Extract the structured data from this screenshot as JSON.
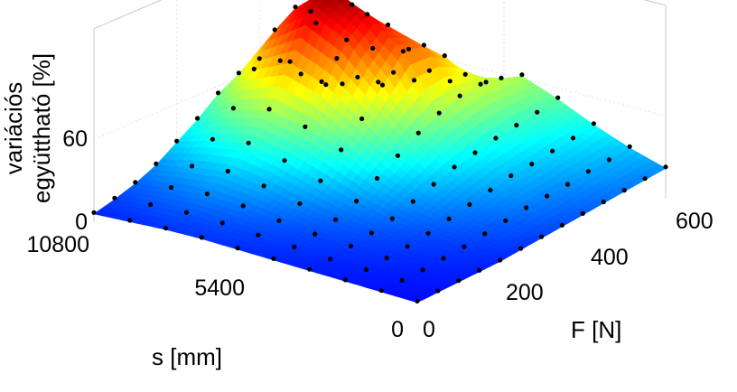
{
  "chart_data": {
    "type": "surface",
    "zlabel_line1": "variációs",
    "zlabel_line2": "együttható [%]",
    "xlabel": "F [N]",
    "ylabel": "s [mm]",
    "x_ticks": [
      "0",
      "200",
      "400",
      "600"
    ],
    "y_ticks": [
      "0",
      "5400",
      "10800"
    ],
    "z_ticks": [
      "0",
      "60"
    ],
    "xlim": [
      0,
      600
    ],
    "ylim": [
      0,
      10800
    ],
    "zlim": [
      0,
      140
    ],
    "colormap": "jet",
    "grid": true,
    "F": [
      0,
      50,
      100,
      150,
      200,
      250,
      300,
      350,
      400,
      450,
      500,
      550,
      600
    ],
    "s": [
      0,
      1200,
      2400,
      3600,
      4800,
      6000,
      7200,
      8400,
      9600,
      10800
    ],
    "z": [
      [
        2,
        3,
        4,
        5,
        6,
        8,
        10,
        12,
        14,
        16,
        18,
        20,
        22
      ],
      [
        3,
        4,
        5,
        7,
        9,
        12,
        15,
        18,
        20,
        22,
        25,
        27,
        30
      ],
      [
        4,
        5,
        7,
        9,
        12,
        16,
        20,
        24,
        28,
        30,
        33,
        36,
        40
      ],
      [
        5,
        6,
        9,
        12,
        16,
        22,
        28,
        34,
        38,
        42,
        45,
        48,
        52
      ],
      [
        6,
        8,
        11,
        15,
        22,
        32,
        42,
        52,
        60,
        66,
        68,
        66,
        62
      ],
      [
        7,
        10,
        14,
        20,
        30,
        46,
        62,
        80,
        98,
        96,
        82,
        62,
        50
      ],
      [
        8,
        12,
        18,
        26,
        38,
        56,
        80,
        106,
        118,
        104,
        80,
        58,
        44
      ],
      [
        8,
        13,
        20,
        30,
        44,
        62,
        90,
        120,
        132,
        112,
        74,
        50,
        38
      ],
      [
        7,
        12,
        18,
        27,
        40,
        56,
        78,
        100,
        110,
        92,
        60,
        40,
        30
      ],
      [
        6,
        10,
        15,
        22,
        32,
        42,
        54,
        62,
        66,
        58,
        42,
        30,
        22
      ]
    ]
  }
}
